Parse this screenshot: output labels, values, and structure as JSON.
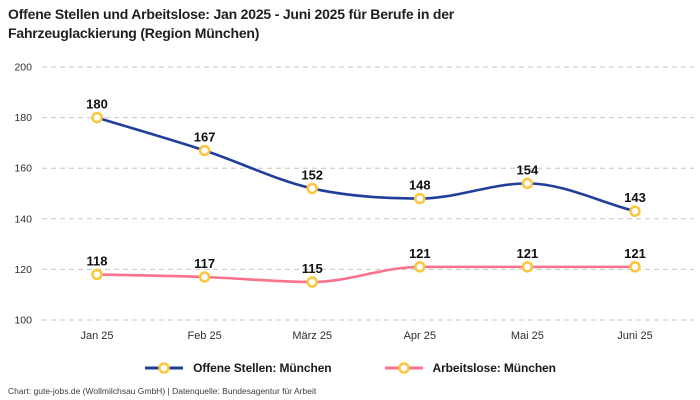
{
  "header": {
    "title": "Offene Stellen und Arbeitslose: Jan 2025 - Juni 2025 für Berufe in der Fahrzeuglackierung (Region München)",
    "title_lines": [
      "Offene Stellen und Arbeitslose: Jan 2025 - Juni 2025 für Berufe in der",
      "Fahrzeuglackierung (Region München)"
    ]
  },
  "chart_data": {
    "type": "line",
    "title": "Offene Stellen und Arbeitslose: Jan 2025 - Juni 2025 für Berufe in der Fahrzeuglackierung (Region München)",
    "categories": [
      "Jan 25",
      "Feb 25",
      "März 25",
      "Apr 25",
      "Mai 25",
      "Juni 25"
    ],
    "series": [
      {
        "name": "Offene Stellen: München",
        "values": [
          180,
          167,
          152,
          148,
          154,
          143
        ],
        "color": "#203f9a"
      },
      {
        "name": "Arbeitslose: München",
        "values": [
          118,
          117,
          115,
          121,
          121,
          121
        ],
        "color": "#f9718a"
      }
    ],
    "y_ticks": [
      100,
      120,
      140,
      160,
      180,
      200
    ],
    "ylim": [
      100,
      200
    ],
    "xlabel": "",
    "ylabel": "",
    "grid": "horizontal-dashed",
    "legend_position": "bottom",
    "value_labels": true,
    "curve": "monotone-smooth",
    "marker": {
      "stroke_color": "#fdc53d",
      "fill_color": "#ffffff"
    }
  },
  "colors": {
    "series_blue": "#203f9a",
    "series_pink": "#f9718a",
    "marker_yellow": "#fdc53d",
    "grid": "#c6c6c6",
    "title_text": "#1f1f1f",
    "axis_text": "#2e2e2e",
    "background": "#ffffff"
  },
  "footer": {
    "text": "Chart: gute-jobs.de (Wollmilchsau GmbH) | Datenquelle: Bundesagentur für Arbeit"
  }
}
